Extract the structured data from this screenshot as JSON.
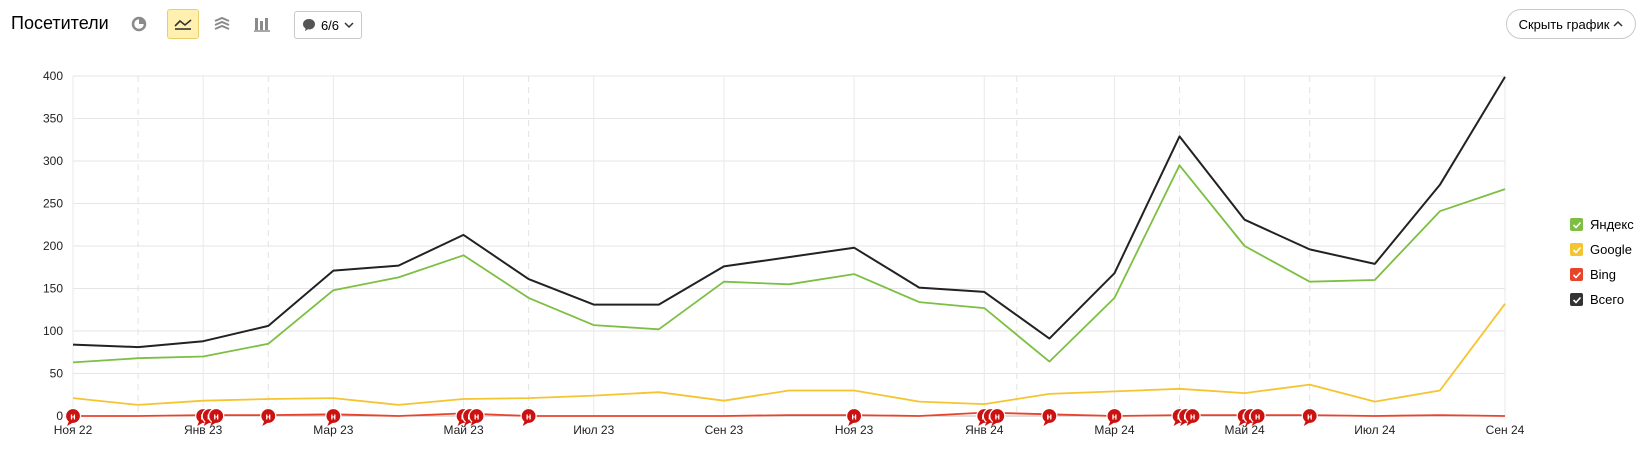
{
  "header": {
    "title": "Посетители",
    "comments_label": "6/6",
    "hide_chart_label": "Скрыть график",
    "view_buttons": [
      {
        "icon": "pie-chart-icon"
      },
      {
        "icon": "line-chart-icon",
        "active": true
      },
      {
        "icon": "stacked-area-icon"
      },
      {
        "icon": "bar-chart-icon"
      }
    ]
  },
  "legend": [
    {
      "label": "Яндекс",
      "color": "#7cbf42"
    },
    {
      "label": "Google",
      "color": "#f5c431"
    },
    {
      "label": "Bing",
      "color": "#e8442b"
    },
    {
      "label": "Всего",
      "color": "#333333"
    }
  ],
  "chart_data": {
    "type": "line",
    "ylim": [
      0,
      400
    ],
    "yticks": [
      0,
      50,
      100,
      150,
      200,
      250,
      300,
      350,
      400
    ],
    "x_tick_labels": [
      "Ноя 22",
      "Янв 23",
      "Мар 23",
      "Май 23",
      "Июл 23",
      "Сен 23",
      "Ноя 23",
      "Янв 24",
      "Мар 24",
      "Май 24",
      "Июл 24",
      "Сен 24"
    ],
    "x_tick_positions": [
      0,
      2,
      4,
      6,
      8,
      10,
      12,
      14,
      16,
      18,
      20,
      22
    ],
    "x_count": 23,
    "dashed_grid_positions": [
      1,
      3,
      7,
      14.5,
      17,
      19
    ],
    "series": [
      {
        "name": "Яндекс",
        "color": "#7cbf42",
        "values": [
          63,
          68,
          70,
          85,
          148,
          163,
          189,
          139,
          107,
          102,
          158,
          155,
          167,
          134,
          127,
          64,
          139,
          295,
          200,
          158,
          160,
          241,
          267
        ]
      },
      {
        "name": "Google",
        "color": "#f5c431",
        "values": [
          21,
          13,
          18,
          20,
          21,
          13,
          20,
          21,
          24,
          28,
          18,
          30,
          30,
          17,
          14,
          26,
          29,
          32,
          27,
          37,
          17,
          30,
          132
        ]
      },
      {
        "name": "Bing",
        "color": "#e8442b",
        "values": [
          0,
          0,
          1,
          1,
          2,
          0,
          3,
          0,
          0,
          0,
          0,
          1,
          1,
          0,
          4,
          2,
          0,
          1,
          1,
          1,
          0,
          1,
          0
        ]
      },
      {
        "name": "Всего",
        "color": "#222222",
        "values": [
          84,
          81,
          88,
          106,
          171,
          177,
          213,
          161,
          131,
          131,
          176,
          187,
          198,
          151,
          146,
          91,
          168,
          329,
          231,
          196,
          179,
          272,
          399
        ]
      }
    ],
    "note_markers": [
      0,
      2,
      2.1,
      2.2,
      3,
      4,
      6,
      6.1,
      6.2,
      7,
      12,
      14,
      14.1,
      14.2,
      15,
      16,
      17,
      17.1,
      17.2,
      18,
      18.1,
      18.2,
      19
    ],
    "note_marker_letter": "н"
  }
}
